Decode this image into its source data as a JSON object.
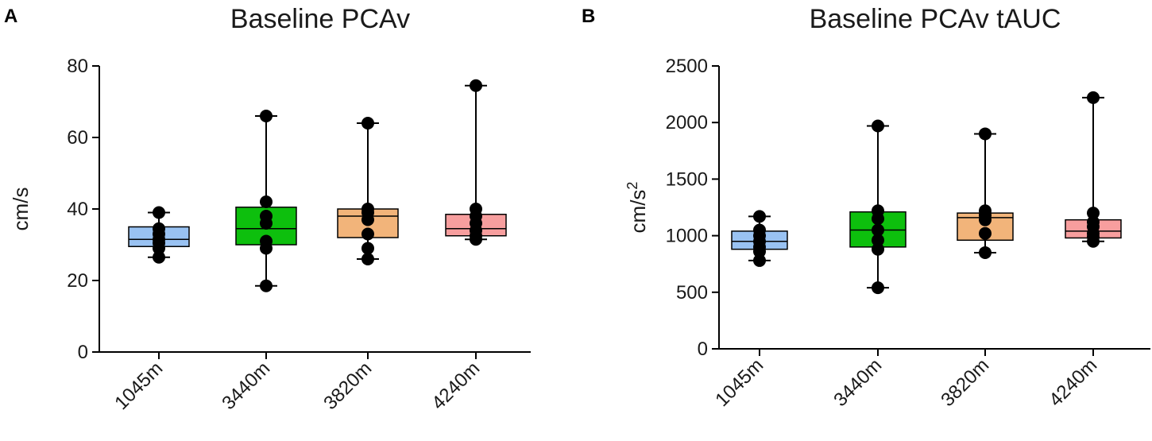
{
  "chart_data": [
    {
      "type": "box",
      "panel": "A",
      "title": "Baseline PCAv",
      "xlabel": "",
      "ylabel": "cm/s",
      "ylabel_superscript": "",
      "ylim": [
        0,
        80
      ],
      "yticks": [
        "0",
        "20",
        "40",
        "60",
        "80"
      ],
      "categories": [
        "1045m",
        "3440m",
        "3820m",
        "4240m"
      ],
      "colors": [
        "#99c2f2",
        "#0dbf0d",
        "#f2b47a",
        "#f79e9e"
      ],
      "boxes": [
        {
          "min": 26.5,
          "q1": 29.5,
          "median": 31.5,
          "q3": 35,
          "max": 39,
          "points": [
            26.5,
            29,
            30.5,
            31.5,
            33,
            34.5,
            39
          ]
        },
        {
          "min": 18.5,
          "q1": 30,
          "median": 34.5,
          "q3": 40.5,
          "max": 66,
          "points": [
            18.5,
            29,
            31,
            36,
            38,
            42,
            66
          ]
        },
        {
          "min": 26,
          "q1": 32,
          "median": 38,
          "q3": 40,
          "max": 64,
          "points": [
            26,
            29,
            33,
            37,
            39,
            40,
            64
          ]
        },
        {
          "min": 31.5,
          "q1": 32.5,
          "median": 34.5,
          "q3": 38.5,
          "max": 74.5,
          "points": [
            31.5,
            32.5,
            34,
            36,
            38,
            40,
            74.5
          ]
        }
      ]
    },
    {
      "type": "box",
      "panel": "B",
      "title": "Baseline PCAv tAUC",
      "xlabel": "",
      "ylabel": "cm/s",
      "ylabel_superscript": "2",
      "ylim": [
        0,
        2500
      ],
      "yticks": [
        "0",
        "500",
        "1000",
        "1500",
        "2000",
        "2500"
      ],
      "categories": [
        "1045m",
        "3440m",
        "3820m",
        "4240m"
      ],
      "colors": [
        "#99c2f2",
        "#0dbf0d",
        "#f2b47a",
        "#f79e9e"
      ],
      "boxes": [
        {
          "min": 780,
          "q1": 880,
          "median": 950,
          "q3": 1040,
          "max": 1170,
          "points": [
            780,
            860,
            900,
            950,
            1000,
            1050,
            1170
          ]
        },
        {
          "min": 540,
          "q1": 900,
          "median": 1050,
          "q3": 1210,
          "max": 1970,
          "points": [
            540,
            880,
            960,
            1050,
            1150,
            1220,
            1970
          ]
        },
        {
          "min": 850,
          "q1": 960,
          "median": 1160,
          "q3": 1200,
          "max": 1900,
          "points": [
            850,
            1020,
            1140,
            1180,
            1220,
            1900
          ]
        },
        {
          "min": 950,
          "q1": 980,
          "median": 1040,
          "q3": 1140,
          "max": 2220,
          "points": [
            950,
            990,
            1020,
            1080,
            1120,
            1200,
            2220
          ]
        }
      ]
    }
  ]
}
